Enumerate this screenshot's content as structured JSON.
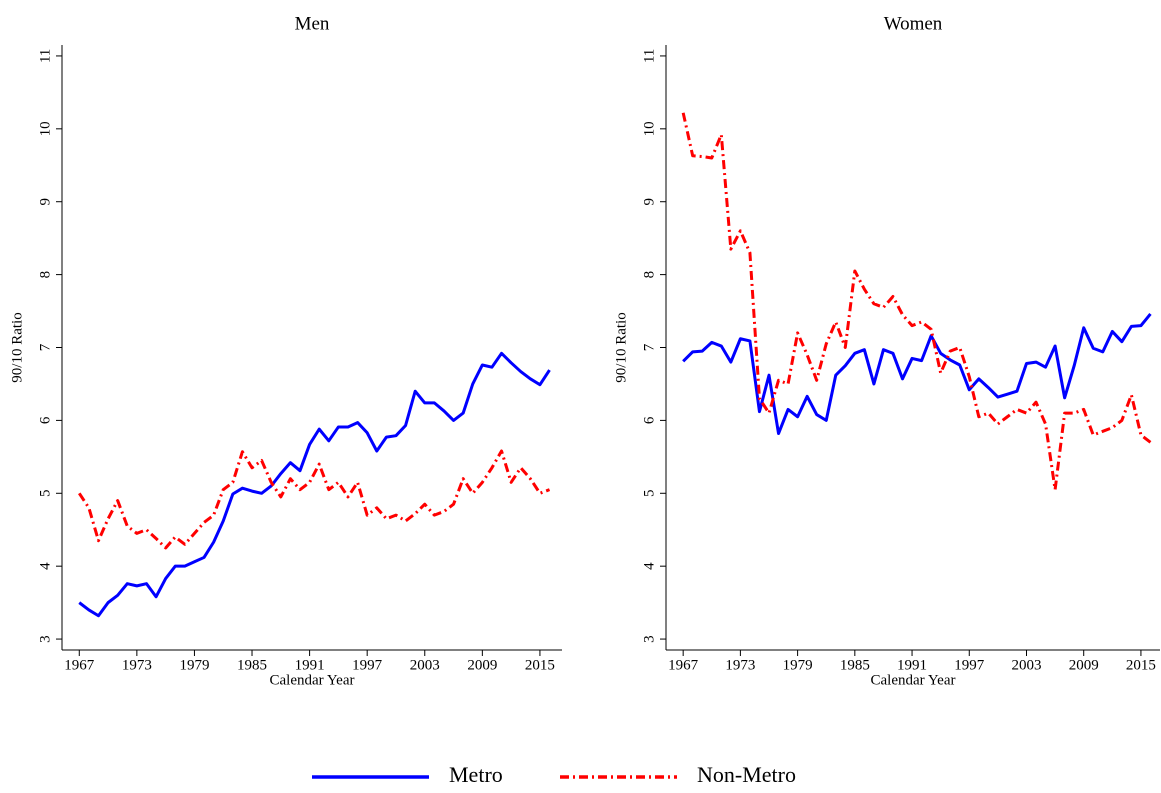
{
  "chart_data": [
    {
      "type": "line",
      "title": "Men",
      "x_label": "Calendar Year",
      "y_label": "90/10 Ratio",
      "x": [
        1967,
        1968,
        1969,
        1970,
        1971,
        1972,
        1973,
        1974,
        1975,
        1976,
        1977,
        1978,
        1979,
        1980,
        1981,
        1982,
        1983,
        1984,
        1985,
        1986,
        1987,
        1988,
        1989,
        1990,
        1991,
        1992,
        1993,
        1994,
        1995,
        1996,
        1997,
        1998,
        1999,
        2000,
        2001,
        2002,
        2003,
        2004,
        2005,
        2006,
        2007,
        2008,
        2009,
        2010,
        2011,
        2012,
        2013,
        2014,
        2015,
        2016
      ],
      "xlim": [
        1965.2,
        2017.3
      ],
      "xticks": [
        1967,
        1973,
        1979,
        1985,
        1991,
        1997,
        2003,
        2009,
        2015
      ],
      "ylim": [
        2.85,
        11.15
      ],
      "yticks": [
        3,
        4,
        5,
        6,
        7,
        8,
        9,
        10,
        11
      ],
      "series": [
        {
          "name": "Metro",
          "color": "#0000ff",
          "style": "solid",
          "values": [
            3.5,
            3.4,
            3.32,
            3.5,
            3.6,
            3.76,
            3.73,
            3.76,
            3.58,
            3.83,
            4.0,
            4.0,
            4.06,
            4.12,
            4.33,
            4.62,
            4.99,
            5.07,
            5.03,
            5.0,
            5.1,
            5.27,
            5.42,
            5.31,
            5.67,
            5.88,
            5.72,
            5.91,
            5.91,
            5.97,
            5.83,
            5.58,
            5.77,
            5.79,
            5.93,
            6.4,
            6.24,
            6.24,
            6.13,
            6.0,
            6.1,
            6.5,
            6.76,
            6.73,
            6.92,
            6.79,
            6.67,
            6.57,
            6.49,
            6.69
          ]
        },
        {
          "name": "Non-Metro",
          "color": "#ff0000",
          "style": "dashdot",
          "values": [
            5.0,
            4.8,
            4.35,
            4.65,
            4.9,
            4.55,
            4.45,
            4.5,
            4.38,
            4.25,
            4.4,
            4.3,
            4.45,
            4.6,
            4.7,
            5.05,
            5.15,
            5.57,
            5.35,
            5.45,
            5.15,
            4.95,
            5.2,
            5.05,
            5.15,
            5.4,
            5.05,
            5.15,
            4.95,
            5.15,
            4.7,
            4.8,
            4.65,
            4.7,
            4.62,
            4.72,
            4.85,
            4.7,
            4.75,
            4.85,
            5.2,
            5.0,
            5.15,
            5.35,
            5.58,
            5.15,
            5.35,
            5.2,
            5.0,
            5.05
          ]
        }
      ]
    },
    {
      "type": "line",
      "title": "Women",
      "x_label": "Calendar Year",
      "y_label": "90/10 Ratio",
      "x": [
        1967,
        1968,
        1969,
        1970,
        1971,
        1972,
        1973,
        1974,
        1975,
        1976,
        1977,
        1978,
        1979,
        1980,
        1981,
        1982,
        1983,
        1984,
        1985,
        1986,
        1987,
        1988,
        1989,
        1990,
        1991,
        1992,
        1993,
        1994,
        1995,
        1996,
        1997,
        1998,
        1999,
        2000,
        2001,
        2002,
        2003,
        2004,
        2005,
        2006,
        2007,
        2008,
        2009,
        2010,
        2011,
        2012,
        2013,
        2014,
        2015,
        2016
      ],
      "xlim": [
        1965.2,
        2017.0
      ],
      "xticks": [
        1967,
        1973,
        1979,
        1985,
        1991,
        1997,
        2003,
        2009,
        2015
      ],
      "ylim": [
        2.85,
        11.15
      ],
      "yticks": [
        3,
        4,
        5,
        6,
        7,
        8,
        9,
        10,
        11
      ],
      "series": [
        {
          "color": "#0000ff",
          "style": "solid",
          "values": [
            6.81,
            6.94,
            6.95,
            7.07,
            7.02,
            6.8,
            7.12,
            7.09,
            6.12,
            6.62,
            5.82,
            6.15,
            6.05,
            6.33,
            6.08,
            6.0,
            6.62,
            6.75,
            6.92,
            6.97,
            6.5,
            6.97,
            6.92,
            6.57,
            6.85,
            6.82,
            7.16,
            6.92,
            6.83,
            6.76,
            6.42,
            6.57,
            6.45,
            6.32,
            6.36,
            6.4,
            6.78,
            6.8,
            6.73,
            7.02,
            6.31,
            6.75,
            7.27,
            6.99,
            6.94,
            7.22,
            7.08,
            7.29,
            7.3,
            7.46
          ]
        },
        {
          "color": "#ff0000",
          "style": "dashdot",
          "values": [
            10.22,
            9.63,
            9.62,
            9.6,
            9.92,
            8.35,
            8.6,
            8.3,
            6.3,
            6.1,
            6.55,
            6.5,
            7.2,
            6.9,
            6.55,
            7.05,
            7.35,
            7.0,
            8.05,
            7.8,
            7.6,
            7.55,
            7.7,
            7.45,
            7.3,
            7.35,
            7.25,
            6.65,
            6.95,
            7.0,
            6.6,
            6.05,
            6.1,
            5.95,
            6.05,
            6.15,
            6.1,
            6.25,
            5.95,
            5.05,
            6.1,
            6.1,
            6.15,
            5.8,
            5.85,
            5.9,
            6.0,
            6.35,
            5.8,
            5.7
          ]
        }
      ]
    }
  ]
}
